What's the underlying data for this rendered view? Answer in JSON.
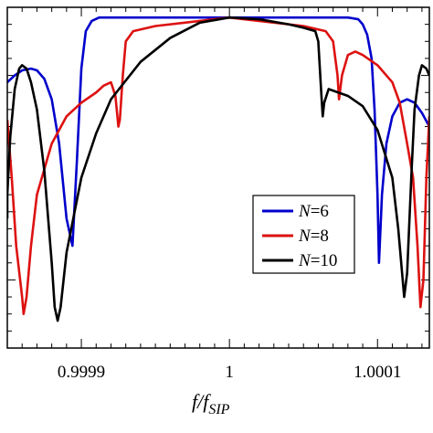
{
  "chart_data": {
    "type": "line",
    "xlabel": "f/f",
    "xlabel_sub": "SIP",
    "xlim": [
      0.99985,
      1.000135
    ],
    "ylim": [
      0,
      1
    ],
    "xticks": [
      {
        "value": 0.9999,
        "label": "0.9999"
      },
      {
        "value": 1.0,
        "label": "1"
      },
      {
        "value": 1.0001,
        "label": "1.0001"
      }
    ],
    "y_minor_ticks": [
      0.05,
      0.1,
      0.15,
      0.2,
      0.25,
      0.3,
      0.35,
      0.4,
      0.45,
      0.5,
      0.55,
      0.6,
      0.65,
      0.7,
      0.75,
      0.8,
      0.85,
      0.9,
      0.95
    ],
    "y_major_ticks": [
      0.2,
      0.4,
      0.6,
      0.8
    ],
    "legend": {
      "placement": "lower-right"
    },
    "series": [
      {
        "name": "N=6",
        "color": "#0000cc",
        "points": [
          [
            0.99985,
            0.78
          ],
          [
            0.999855,
            0.8
          ],
          [
            0.99986,
            0.815
          ],
          [
            0.999866,
            0.82
          ],
          [
            0.99987,
            0.815
          ],
          [
            0.999875,
            0.79
          ],
          [
            0.99988,
            0.73
          ],
          [
            0.999885,
            0.6
          ],
          [
            0.99989,
            0.38
          ],
          [
            0.999894,
            0.3
          ],
          [
            0.999897,
            0.55
          ],
          [
            0.9999,
            0.82
          ],
          [
            0.999903,
            0.93
          ],
          [
            0.999907,
            0.96
          ],
          [
            0.999912,
            0.97
          ],
          [
            0.99992,
            0.97
          ],
          [
            0.99995,
            0.97
          ],
          [
            1.0,
            0.97
          ],
          [
            1.00005,
            0.97
          ],
          [
            1.00008,
            0.97
          ],
          [
            1.000087,
            0.965
          ],
          [
            1.00009,
            0.95
          ],
          [
            1.000093,
            0.92
          ],
          [
            1.000096,
            0.85
          ],
          [
            1.000098,
            0.7
          ],
          [
            1.0001,
            0.45
          ],
          [
            1.000101,
            0.25
          ],
          [
            1.000103,
            0.45
          ],
          [
            1.000106,
            0.6
          ],
          [
            1.00011,
            0.68
          ],
          [
            1.000115,
            0.72
          ],
          [
            1.00012,
            0.73
          ],
          [
            1.000125,
            0.72
          ],
          [
            1.00013,
            0.69
          ],
          [
            1.000135,
            0.65
          ]
        ]
      },
      {
        "name": "N=8",
        "color": "#dd1111",
        "points": [
          [
            0.99985,
            0.67
          ],
          [
            0.999853,
            0.5
          ],
          [
            0.999856,
            0.3
          ],
          [
            0.99986,
            0.15
          ],
          [
            0.999861,
            0.1
          ],
          [
            0.999863,
            0.15
          ],
          [
            0.999866,
            0.3
          ],
          [
            0.99987,
            0.45
          ],
          [
            0.99988,
            0.6
          ],
          [
            0.99989,
            0.68
          ],
          [
            0.9999,
            0.72
          ],
          [
            0.99991,
            0.75
          ],
          [
            0.999915,
            0.77
          ],
          [
            0.99992,
            0.78
          ],
          [
            0.999923,
            0.74
          ],
          [
            0.999925,
            0.65
          ],
          [
            0.999926,
            0.67
          ],
          [
            0.999928,
            0.8
          ],
          [
            0.99993,
            0.9
          ],
          [
            0.999935,
            0.93
          ],
          [
            0.99995,
            0.945
          ],
          [
            0.99998,
            0.96
          ],
          [
            1.0,
            0.97
          ],
          [
            1.00002,
            0.96
          ],
          [
            1.00005,
            0.945
          ],
          [
            1.000065,
            0.93
          ],
          [
            1.00007,
            0.9
          ],
          [
            1.000073,
            0.8
          ],
          [
            1.000074,
            0.73
          ],
          [
            1.000076,
            0.8
          ],
          [
            1.00008,
            0.86
          ],
          [
            1.000085,
            0.87
          ],
          [
            1.00009,
            0.86
          ],
          [
            1.0001,
            0.83
          ],
          [
            1.00011,
            0.78
          ],
          [
            1.000115,
            0.72
          ],
          [
            1.00012,
            0.6
          ],
          [
            1.000124,
            0.5
          ],
          [
            1.000127,
            0.3
          ],
          [
            1.000129,
            0.12
          ],
          [
            1.000131,
            0.2
          ],
          [
            1.000133,
            0.5
          ],
          [
            1.000135,
            0.68
          ]
        ]
      },
      {
        "name": "N=10",
        "color": "#000000",
        "points": [
          [
            0.99985,
            0.38
          ],
          [
            0.99985,
            0.45
          ],
          [
            0.999852,
            0.62
          ],
          [
            0.999855,
            0.76
          ],
          [
            0.999858,
            0.82
          ],
          [
            0.99986,
            0.83
          ],
          [
            0.999863,
            0.82
          ],
          [
            0.999866,
            0.78
          ],
          [
            0.99987,
            0.7
          ],
          [
            0.999875,
            0.52
          ],
          [
            0.99988,
            0.25
          ],
          [
            0.999882,
            0.12
          ],
          [
            0.999884,
            0.08
          ],
          [
            0.999886,
            0.12
          ],
          [
            0.99989,
            0.28
          ],
          [
            0.9999,
            0.5
          ],
          [
            0.99991,
            0.63
          ],
          [
            0.99992,
            0.73
          ],
          [
            0.99994,
            0.84
          ],
          [
            0.99996,
            0.91
          ],
          [
            0.99998,
            0.955
          ],
          [
            1.0,
            0.97
          ],
          [
            1.00002,
            0.965
          ],
          [
            1.00004,
            0.95
          ],
          [
            1.00005,
            0.94
          ],
          [
            1.000058,
            0.93
          ],
          [
            1.00006,
            0.9
          ],
          [
            1.000062,
            0.75
          ],
          [
            1.000063,
            0.68
          ],
          [
            1.000064,
            0.72
          ],
          [
            1.000067,
            0.76
          ],
          [
            1.00008,
            0.74
          ],
          [
            1.00009,
            0.71
          ],
          [
            1.0001,
            0.64
          ],
          [
            1.00011,
            0.5
          ],
          [
            1.000114,
            0.35
          ],
          [
            1.000117,
            0.2
          ],
          [
            1.000118,
            0.15
          ],
          [
            1.00012,
            0.22
          ],
          [
            1.000123,
            0.52
          ],
          [
            1.000125,
            0.7
          ],
          [
            1.000128,
            0.8
          ],
          [
            1.00013,
            0.83
          ],
          [
            1.000133,
            0.82
          ],
          [
            1.000135,
            0.8
          ]
        ]
      }
    ]
  }
}
